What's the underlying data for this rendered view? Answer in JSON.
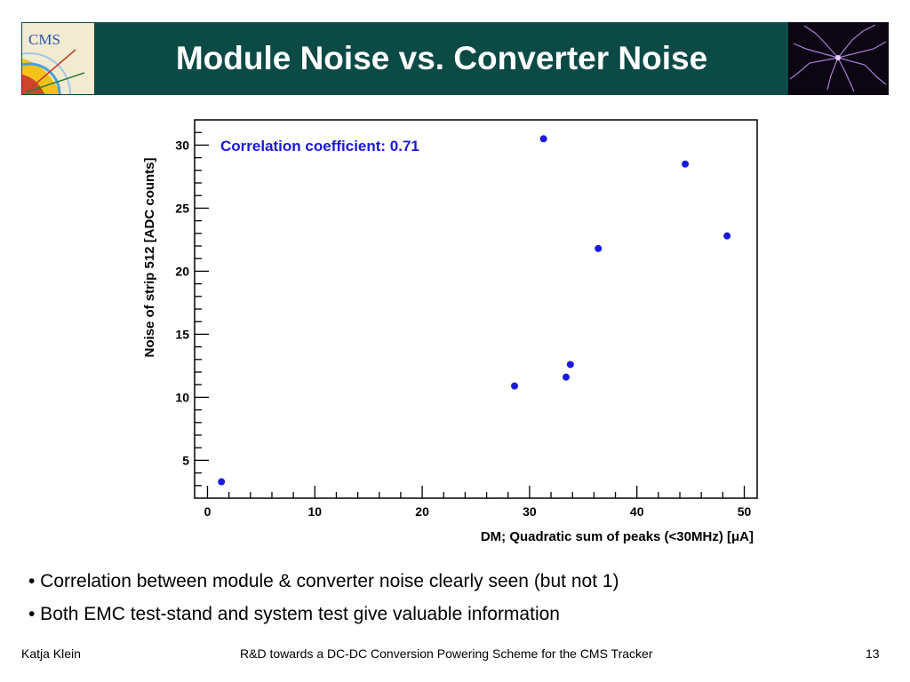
{
  "header": {
    "title": "Module Noise vs. Converter Noise",
    "left_logo_text": "CMS",
    "accent_color": "#0b4a45"
  },
  "chart_data": {
    "type": "scatter",
    "xlabel": "DM; Quadratic sum of peaks (<30MHz) [μA]",
    "ylabel": "Noise of strip 512 [ADC counts]",
    "xlim": [
      -1.2,
      51.2
    ],
    "ylim": [
      2.0,
      32.0
    ],
    "x_ticks": [
      0,
      10,
      20,
      30,
      40,
      50
    ],
    "y_ticks": [
      5,
      10,
      15,
      20,
      25,
      30
    ],
    "annotation": "Correlation coefficient:  0.71",
    "point_color": "#1a1adc",
    "points": [
      {
        "x": 1.3,
        "y": 3.3
      },
      {
        "x": 28.6,
        "y": 10.9
      },
      {
        "x": 31.3,
        "y": 30.5
      },
      {
        "x": 33.4,
        "y": 11.6
      },
      {
        "x": 33.8,
        "y": 12.6
      },
      {
        "x": 36.4,
        "y": 21.8
      },
      {
        "x": 44.5,
        "y": 28.5
      },
      {
        "x": 48.4,
        "y": 22.8
      }
    ]
  },
  "bullets": [
    "• Correlation between module & converter noise clearly seen (but not 1)",
    "• Both EMC test-stand and system test give valuable information"
  ],
  "footer": {
    "author": "Katja Klein",
    "talk_title": "R&D towards a DC-DC Conversion Powering Scheme for the CMS Tracker",
    "page_number": "13"
  }
}
